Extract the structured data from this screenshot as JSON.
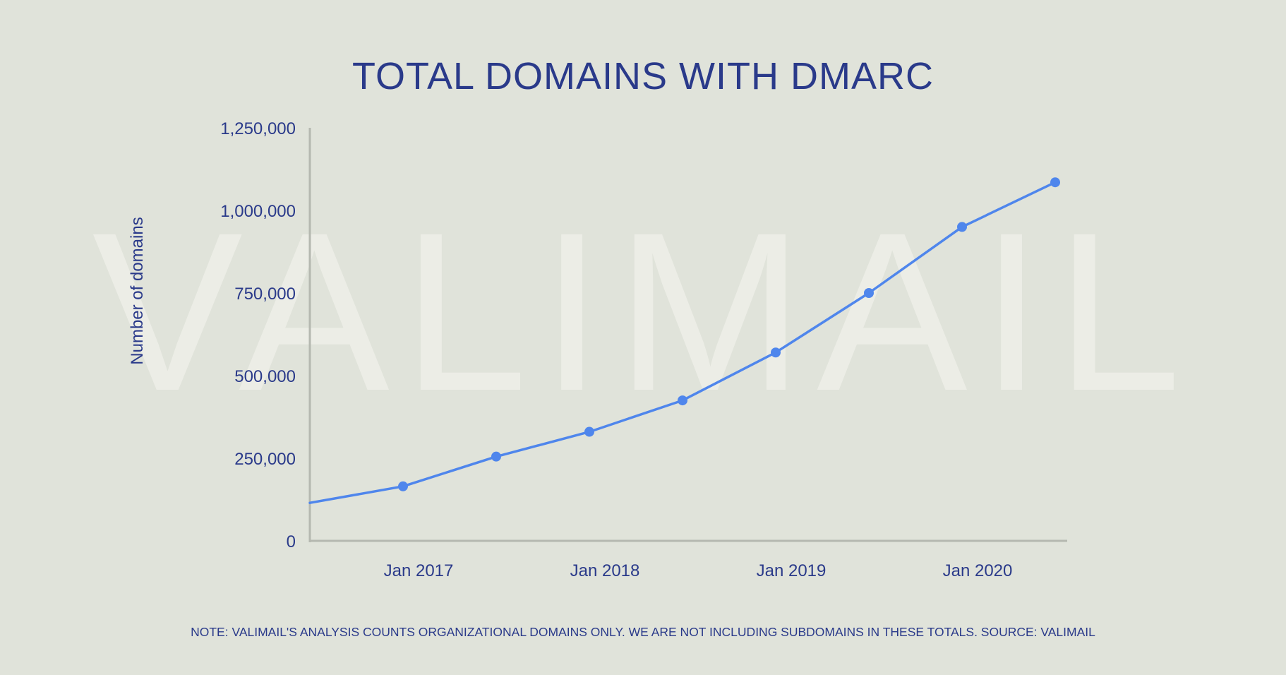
{
  "watermark": {
    "text": "VALIMAIL",
    "color": "#ecede6"
  },
  "colors": {
    "background": "#e0e3da",
    "title": "#2a3a8a",
    "series": "#4f86ec",
    "axis": "#b5b8b0"
  },
  "chart_data": {
    "type": "line",
    "title": "TOTAL DOMAINS WITH DMARC",
    "xlabel": "",
    "ylabel": "Number of domains",
    "xlim": [
      "2016-06",
      "2020-06"
    ],
    "ylim": [
      0,
      1250000
    ],
    "x_ticks": [
      {
        "x": "2017-01",
        "label": "Jan 2017"
      },
      {
        "x": "2018-01",
        "label": "Jan 2018"
      },
      {
        "x": "2019-01",
        "label": "Jan 2019"
      },
      {
        "x": "2020-01",
        "label": "Jan 2020"
      }
    ],
    "y_ticks": [
      {
        "value": 0,
        "label": "0"
      },
      {
        "value": 250000,
        "label": "250,000"
      },
      {
        "value": 500000,
        "label": "500,000"
      },
      {
        "value": 750000,
        "label": "750,000"
      },
      {
        "value": 1000000,
        "label": "1,000,000"
      },
      {
        "value": 1250000,
        "label": "1,250,000"
      }
    ],
    "grid": false,
    "legend": "none",
    "series": [
      {
        "values": [
          {
            "x": "2016-06",
            "y": 115000,
            "marker": false
          },
          {
            "x": "2016-12",
            "y": 165000,
            "marker": true
          },
          {
            "x": "2017-06",
            "y": 255000,
            "marker": true
          },
          {
            "x": "2017-12",
            "y": 330000,
            "marker": true
          },
          {
            "x": "2018-06",
            "y": 425000,
            "marker": true
          },
          {
            "x": "2018-12",
            "y": 570000,
            "marker": true
          },
          {
            "x": "2019-06",
            "y": 750000,
            "marker": true
          },
          {
            "x": "2019-12",
            "y": 950000,
            "marker": true
          },
          {
            "x": "2020-06",
            "y": 1085000,
            "marker": true
          }
        ]
      }
    ]
  },
  "note": "NOTE: VALIMAIL'S ANALYSIS COUNTS ORGANIZATIONAL DOMAINS ONLY. WE ARE NOT INCLUDING SUBDOMAINS IN THESE TOTALS. SOURCE: VALIMAIL"
}
